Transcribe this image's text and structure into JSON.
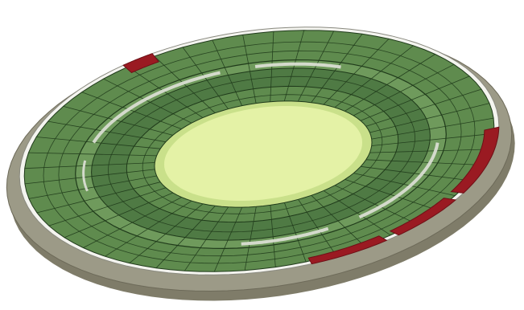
{
  "scene": {
    "subject": "stadium-3d-model",
    "colors": {
      "background": "#ffffff",
      "base_top": "#9c9a87",
      "base_side": "#7f7c69",
      "outer_rim": "#f4f4ef",
      "upper_tier": "#5f8b4e",
      "concourse": "#6f9a5c",
      "lower_tier": "#4f7a44",
      "pitch": "#e4f2a6",
      "pitch_edge": "#c9e08a",
      "grid_line": "#1f3a1a",
      "walkway": "#d9ddd2",
      "red_sections": "#9a1a22",
      "red_dark": "#6e1016"
    }
  }
}
